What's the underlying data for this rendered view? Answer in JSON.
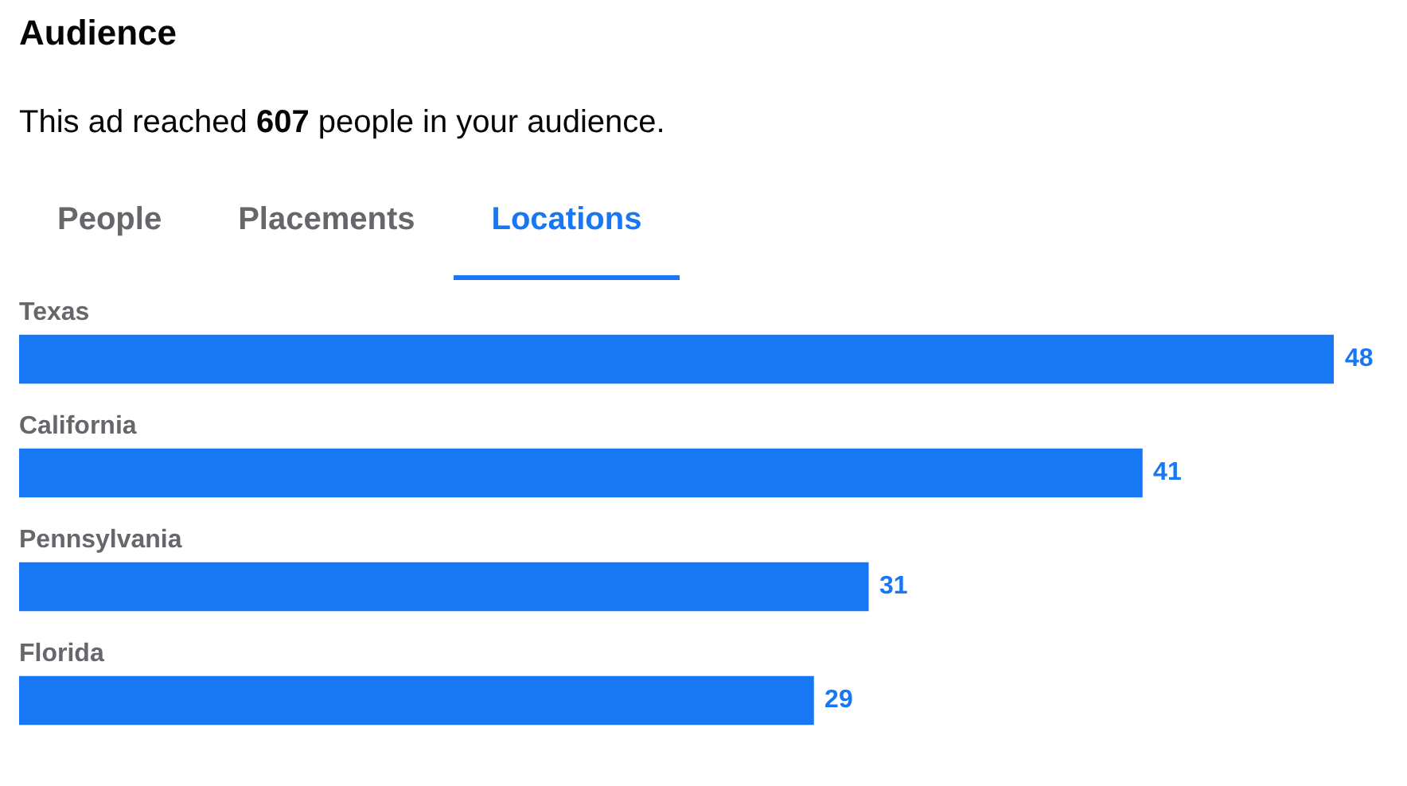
{
  "chart_data": {
    "type": "bar",
    "orientation": "horizontal",
    "title": "Audience",
    "subtitle": "This ad reached 607 people in your audience.",
    "annotations": [
      "People",
      "Placements",
      "Locations"
    ],
    "categories": [
      "Texas",
      "California",
      "Pennsylvania",
      "Florida"
    ],
    "values": [
      48,
      41,
      31,
      29
    ],
    "color": "#1877f2",
    "data_labels": true
  }
}
